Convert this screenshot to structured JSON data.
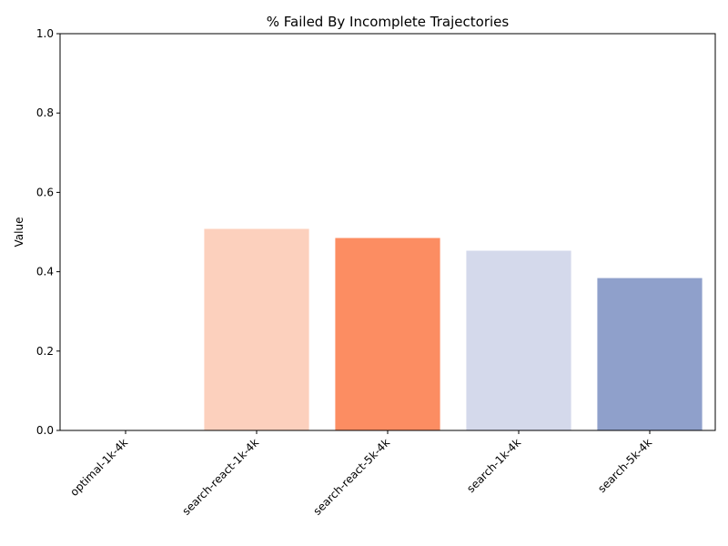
{
  "chart_data": {
    "type": "bar",
    "title": "% Failed By Incomplete Trajectories",
    "xlabel": "",
    "ylabel": "Value",
    "ylim": [
      0,
      1.0
    ],
    "yticks": [
      "0.0",
      "0.2",
      "0.4",
      "0.6",
      "0.8",
      "1.0"
    ],
    "categories": [
      "optimal-1k-4k",
      "search-react-1k-4k",
      "search-react-5k-4k",
      "search-1k-4k",
      "search-5k-4k"
    ],
    "values": [
      0.0,
      0.508,
      0.485,
      0.453,
      0.384
    ],
    "colors": [
      "#ffffff",
      "#fcd0bd",
      "#fc8d62",
      "#d4d9eb",
      "#8fa0cb"
    ],
    "grid": false,
    "legend": "none"
  }
}
